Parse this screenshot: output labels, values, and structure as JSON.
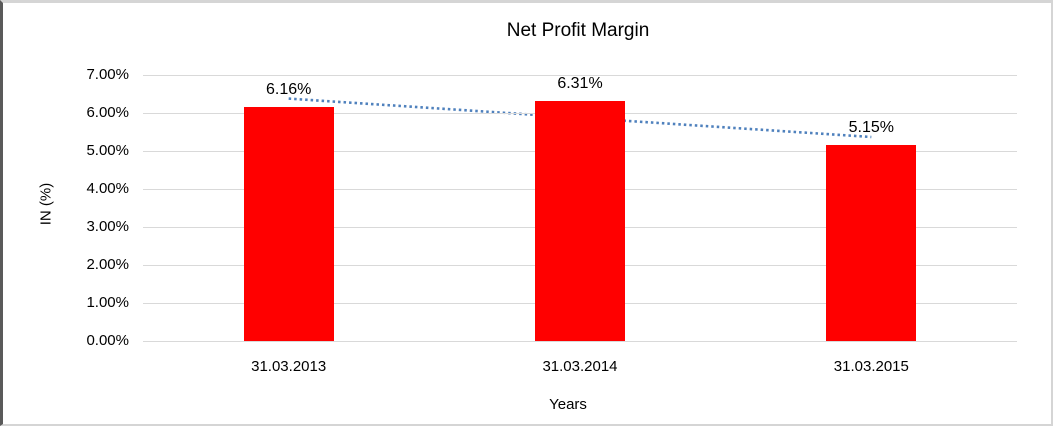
{
  "chart_data": {
    "type": "bar",
    "title": "Net Profit Margin",
    "xlabel": "Years",
    "ylabel": "IN (%)",
    "categories": [
      "31.03.2013",
      "31.03.2014",
      "31.03.2015"
    ],
    "values": [
      6.16,
      6.31,
      5.15
    ],
    "value_labels": [
      "6.16%",
      "6.31%",
      "5.15%"
    ],
    "ytick_labels": [
      "7.00%",
      "6.00%",
      "5.00%",
      "4.00%",
      "3.00%",
      "2.00%",
      "1.00%",
      "0.00%"
    ],
    "ylim": [
      0,
      7
    ],
    "grid": true,
    "legend": "none",
    "bar_color": "#ff0000",
    "gridline_color": "#d9d9d9",
    "trendline": {
      "type": "linear",
      "style": "dotted",
      "color": "#4f81bd"
    }
  }
}
